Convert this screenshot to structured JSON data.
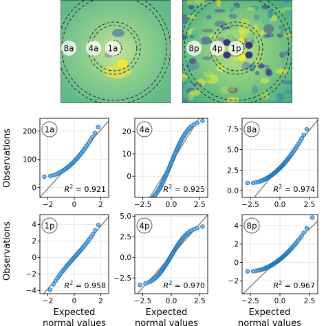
{
  "figure": {
    "y_axis_label": "Observations",
    "x_axis_label_line1": "Expected",
    "x_axis_label_line2": "normal values"
  },
  "maps": [
    {
      "name": "amplitude-map",
      "labels": [
        "8a",
        "4a",
        "1a"
      ],
      "background": "#7dc88a",
      "accent_yellow": "#f2e32b",
      "accent_purple": "#4a3a8c"
    },
    {
      "name": "phase-map",
      "labels": [
        "8p",
        "4p",
        "1p"
      ],
      "background": "#8fd07f",
      "accent_yellow": "#f2e32b",
      "accent_purple": "#3b2e8a"
    }
  ],
  "colors": {
    "point_fill": "#7fb3e6",
    "point_edge": "#1f77b4",
    "fit_line": "#8c8c8c",
    "grid": "#e6e6e6",
    "axes": "#000000"
  },
  "chart_data": [
    {
      "type": "scatter",
      "badge": "1a",
      "r2_label": "R",
      "r2_sup": "2",
      "r2_value": " = 0.921",
      "xlim": [
        -2.6,
        2.6
      ],
      "ylim": [
        -35,
        245
      ],
      "xticks": [
        {
          "v": -2,
          "t": "−2"
        },
        {
          "v": 0,
          "t": "0"
        },
        {
          "v": 2,
          "t": "2"
        }
      ],
      "yticks": [
        {
          "v": 0,
          "t": "0"
        },
        {
          "v": 100,
          "t": "100"
        },
        {
          "v": 200,
          "t": "200"
        }
      ],
      "fit": {
        "slope": 52,
        "intercept": 100
      },
      "dist": "skew",
      "scale": 48,
      "mean": 100,
      "n": 42
    },
    {
      "type": "scatter",
      "badge": "4a",
      "r2_label": "R",
      "r2_sup": "2",
      "r2_value": " = 0.925",
      "xlim": [
        -3.2,
        3.2
      ],
      "ylim": [
        -9.5,
        26
      ],
      "xticks": [
        {
          "v": -2.5,
          "t": "−2.5"
        },
        {
          "v": 0,
          "t": "0.0"
        },
        {
          "v": 2.5,
          "t": "2.5"
        }
      ],
      "yticks": [
        {
          "v": -10,
          "t": "−10"
        },
        {
          "v": 0,
          "t": "0"
        },
        {
          "v": 10,
          "t": "10"
        },
        {
          "v": 20,
          "t": "20"
        }
      ],
      "fit": {
        "slope": 8.2,
        "intercept": 6
      },
      "dist": "bimodal",
      "scale": 8,
      "mean": 6,
      "n": 70
    },
    {
      "type": "scatter",
      "badge": "8a",
      "r2_label": "R",
      "r2_sup": "2",
      "r2_value": " = 0.974",
      "xlim": [
        -3.2,
        3.2
      ],
      "ylim": [
        -0.8,
        8.8
      ],
      "xticks": [
        {
          "v": -2.5,
          "t": "−2.5"
        },
        {
          "v": 0,
          "t": "0.0"
        },
        {
          "v": 2.5,
          "t": "2.5"
        }
      ],
      "yticks": [
        {
          "v": 0,
          "t": "0.0"
        },
        {
          "v": 2.5,
          "t": "2.5"
        },
        {
          "v": 5,
          "t": "5.0"
        },
        {
          "v": 7.5,
          "t": "7.5"
        }
      ],
      "fit": {
        "slope": 1.75,
        "intercept": 3
      },
      "dist": "skew",
      "scale": 1.6,
      "mean": 3,
      "n": 70
    },
    {
      "type": "scatter",
      "badge": "1p",
      "r2_label": "R",
      "r2_sup": "2",
      "r2_value": " = 0.958",
      "xlim": [
        -2.6,
        2.6
      ],
      "ylim": [
        -4.4,
        5.2
      ],
      "xticks": [
        {
          "v": -2,
          "t": "−2"
        },
        {
          "v": 0,
          "t": "0"
        },
        {
          "v": 2,
          "t": "2"
        }
      ],
      "yticks": [
        {
          "v": -4,
          "t": "−4"
        },
        {
          "v": -2,
          "t": "−2"
        },
        {
          "v": 0,
          "t": "0"
        },
        {
          "v": 2,
          "t": "2"
        },
        {
          "v": 4,
          "t": "4"
        }
      ],
      "fit": {
        "slope": 1.9,
        "intercept": 0
      },
      "dist": "heavy",
      "scale": 1.8,
      "mean": 0,
      "n": 44
    },
    {
      "type": "scatter",
      "badge": "4p",
      "r2_label": "R",
      "r2_sup": "2",
      "r2_value": " = 0.970",
      "xlim": [
        -3.2,
        3.2
      ],
      "ylim": [
        -4.4,
        5.2
      ],
      "xticks": [
        {
          "v": -2.5,
          "t": "−2.5"
        },
        {
          "v": 0,
          "t": "0.0"
        },
        {
          "v": 2.5,
          "t": "2.5"
        }
      ],
      "yticks": [
        {
          "v": -2.5,
          "t": "−2.5"
        },
        {
          "v": 0,
          "t": "0.0"
        },
        {
          "v": 2.5,
          "t": "2.5"
        },
        {
          "v": 5,
          "t": "5.0"
        }
      ],
      "fit": {
        "slope": 1.55,
        "intercept": 0.2
      },
      "dist": "bimodal",
      "scale": 1.5,
      "mean": 0.2,
      "n": 70
    },
    {
      "type": "scatter",
      "badge": "8p",
      "r2_label": "R",
      "r2_sup": "2",
      "r2_value": " = 0.967",
      "xlim": [
        -3.2,
        3.2
      ],
      "ylim": [
        -3.4,
        5.2
      ],
      "xticks": [
        {
          "v": -2.5,
          "t": "−2.5"
        },
        {
          "v": 0,
          "t": "0.0"
        },
        {
          "v": 2.5,
          "t": "2.5"
        }
      ],
      "yticks": [
        {
          "v": -2,
          "t": "−2"
        },
        {
          "v": 0,
          "t": "0"
        },
        {
          "v": 2,
          "t": "2"
        },
        {
          "v": 4,
          "t": "4"
        }
      ],
      "fit": {
        "slope": 1.25,
        "intercept": 0.5
      },
      "dist": "skew",
      "scale": 1.15,
      "mean": 0.5,
      "n": 70
    }
  ]
}
